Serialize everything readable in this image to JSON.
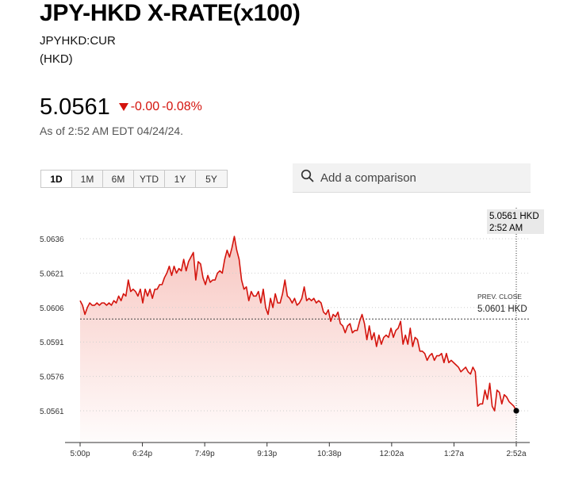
{
  "header": {
    "title": "JPY-HKD X-RATE(x100)",
    "ticker": "JPYHKD:CUR",
    "currency": "(HKD)"
  },
  "quote": {
    "price": "5.0561",
    "change": "-0.00",
    "change_pct": "-0.08%",
    "as_of": "As of 2:52 AM EDT 04/24/24."
  },
  "ranges": [
    "1D",
    "1M",
    "6M",
    "YTD",
    "1Y",
    "5Y"
  ],
  "active_range": "1D",
  "comparison": {
    "placeholder": "Add a comparison"
  },
  "colors": {
    "line": "#d4140d",
    "fill_top": "#f7c3bd",
    "down": "#d4140d"
  },
  "chart_data": {
    "type": "area",
    "title": "",
    "xlabel": "",
    "ylabel": "",
    "x_tick_labels": [
      "5:00p",
      "6:24p",
      "7:49p",
      "9:13p",
      "10:38p",
      "12:02a",
      "1:27a",
      "2:52a"
    ],
    "y_tick_labels": [
      "5.0636",
      "5.0621",
      "5.0606",
      "5.0591",
      "5.0576",
      "5.0561"
    ],
    "y_ticks": [
      5.0636,
      5.0621,
      5.0606,
      5.0591,
      5.0576,
      5.0561
    ],
    "ylim": [
      5.0555,
      5.0642
    ],
    "grid": true,
    "prev_close": {
      "label": "PREV. CLOSE",
      "value_label": "5.0601 HKD",
      "value": 5.0601
    },
    "last": {
      "value_label": "5.0561 HKD",
      "time_label": "2:52 AM",
      "value": 5.0561
    },
    "series": [
      {
        "values": [
          5.0609,
          5.0607,
          5.0603,
          5.0606,
          5.0608,
          5.0607,
          5.0607,
          5.0608,
          5.0607,
          5.0608,
          5.0608,
          5.0607,
          5.0608,
          5.0607,
          5.0609,
          5.0608,
          5.0611,
          5.0609,
          5.0612,
          5.0611,
          5.0618,
          5.0613,
          5.0614,
          5.0613,
          5.0611,
          5.0614,
          5.0608,
          5.0614,
          5.0611,
          5.0614,
          5.061,
          5.0614,
          5.0614,
          5.0616,
          5.0616,
          5.0619,
          5.0621,
          5.0624,
          5.062,
          5.0624,
          5.0621,
          5.0623,
          5.0622,
          5.0627,
          5.0622,
          5.0626,
          5.0628,
          5.063,
          5.0618,
          5.0626,
          5.0625,
          5.0619,
          5.0616,
          5.062,
          5.0617,
          5.0618,
          5.0618,
          5.0621,
          5.0622,
          5.0621,
          5.0627,
          5.0631,
          5.0628,
          5.0632,
          5.0637,
          5.0631,
          5.0627,
          5.0618,
          5.0614,
          5.0615,
          5.0609,
          5.0613,
          5.0611,
          5.0611,
          5.0613,
          5.0608,
          5.0614,
          5.0606,
          5.0603,
          5.061,
          5.0606,
          5.0612,
          5.0608,
          5.0608,
          5.0612,
          5.0618,
          5.0611,
          5.061,
          5.0608,
          5.061,
          5.0607,
          5.0608,
          5.061,
          5.0615,
          5.0609,
          5.061,
          5.0609,
          5.061,
          5.0608,
          5.0609,
          5.0608,
          5.0604,
          5.0603,
          5.0605,
          5.06,
          5.0603,
          5.0602,
          5.0604,
          5.0599,
          5.0598,
          5.0595,
          5.0598,
          5.0599,
          5.0595,
          5.0596,
          5.0596,
          5.06,
          5.0603,
          5.0599,
          5.0592,
          5.0598,
          5.0592,
          5.0595,
          5.0589,
          5.0594,
          5.059,
          5.0593,
          5.0594,
          5.0593,
          5.0597,
          5.0593,
          5.0596,
          5.0597,
          5.06,
          5.059,
          5.0594,
          5.059,
          5.0597,
          5.0589,
          5.0593,
          5.0592,
          5.0587,
          5.0587,
          5.0586,
          5.0583,
          5.0585,
          5.0586,
          5.0583,
          5.0585,
          5.0585,
          5.0586,
          5.0582,
          5.0586,
          5.0582,
          5.0583,
          5.0582,
          5.0581,
          5.058,
          5.0578,
          5.0579,
          5.058,
          5.0578,
          5.0577,
          5.058,
          5.0578,
          5.0563,
          5.0564,
          5.0564,
          5.057,
          5.0566,
          5.0573,
          5.0563,
          5.0561,
          5.057,
          5.0569,
          5.0564,
          5.0568,
          5.0567,
          5.0565,
          5.0564,
          5.0563,
          5.0561
        ]
      }
    ]
  }
}
